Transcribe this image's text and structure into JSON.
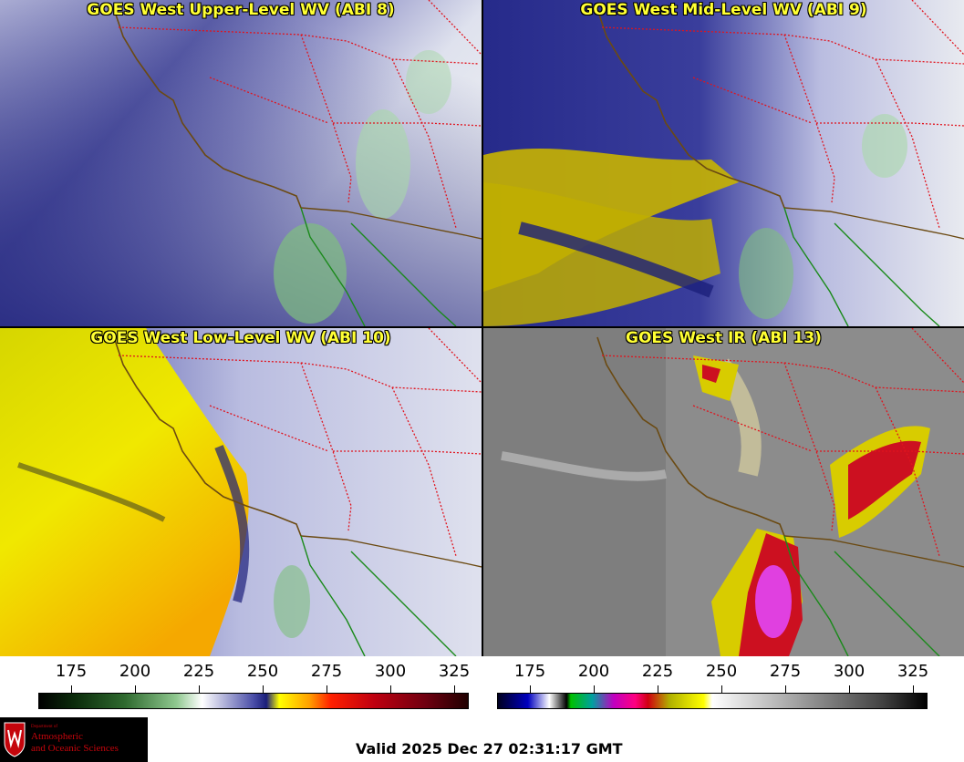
{
  "panels": [
    {
      "title": "GOES West Upper-Level WV (ABI 8)"
    },
    {
      "title": "GOES West Mid-Level WV (ABI 9)"
    },
    {
      "title": "GOES West Low-Level WV (ABI 10)"
    },
    {
      "title": "GOES West IR (ABI 13)"
    }
  ],
  "colorbars": {
    "wv": {
      "ticks": [
        "175",
        "200",
        "225",
        "250",
        "275",
        "300",
        "325"
      ]
    },
    "ir": {
      "ticks": [
        "175",
        "200",
        "225",
        "250",
        "275",
        "300",
        "325"
      ]
    }
  },
  "logo": {
    "dept": "Department of",
    "line1": "Atmospheric",
    "line2": "and Oceanic Sciences"
  },
  "valid_time": "Valid 2025 Dec 27 02:31:17 GMT",
  "colors": {
    "title_text": "#ffff33",
    "coast": "#6b4a12",
    "state_border": "#e0141e",
    "mexico_coast": "#1a8a1a"
  }
}
